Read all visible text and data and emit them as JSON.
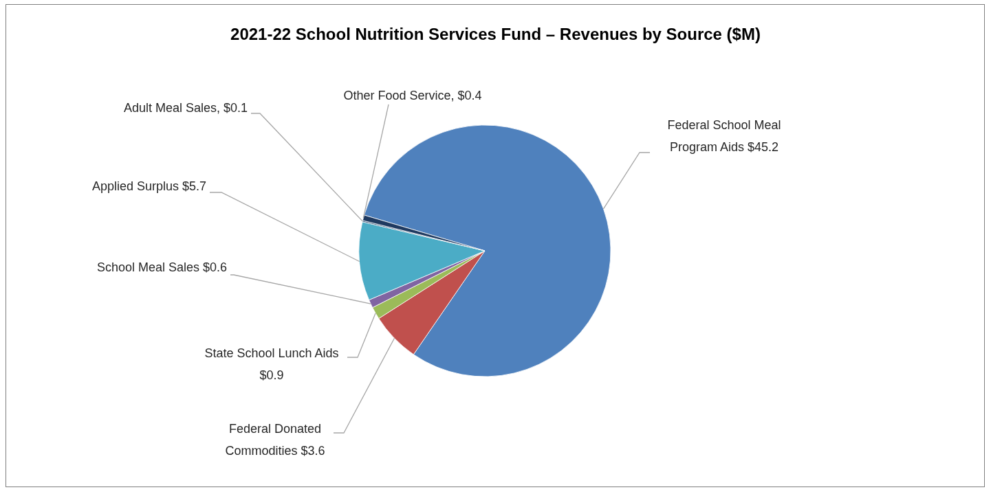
{
  "chart_data": {
    "type": "pie",
    "title": "2021-22 School Nutrition Services Fund – Revenues by Source ($M)",
    "categories": [
      "Federal School Meal Program Aids",
      "Federal Donated Commodities",
      "State School Lunch Aids",
      "School Meal Sales",
      "Applied Surplus",
      "Adult Meal Sales",
      "Other Food Service"
    ],
    "values": [
      45.2,
      3.6,
      0.9,
      0.6,
      5.7,
      0.1,
      0.4
    ],
    "value_labels": [
      "$45.2",
      "$3.6",
      "$0.9",
      "$0.6",
      "$5.7",
      "$0.1",
      "$0.4"
    ],
    "colors": [
      "#4f81bd",
      "#c0504d",
      "#9bbb59",
      "#8064a2",
      "#4bacc6",
      "#2c4d75",
      "#1f3a60"
    ]
  }
}
